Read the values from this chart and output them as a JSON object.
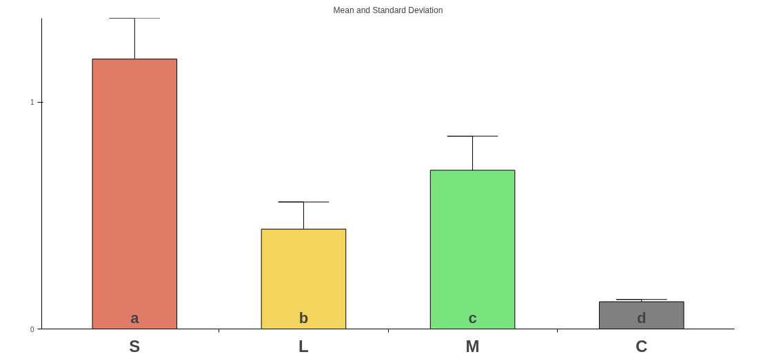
{
  "chart_data": {
    "type": "bar",
    "title": "Mean and Standard Deviation",
    "categories": [
      "S",
      "L",
      "M",
      "C"
    ],
    "values": [
      1.19,
      0.44,
      0.7,
      0.12
    ],
    "colors": [
      "#e07b67",
      "#f5d45e",
      "#7ae57e",
      "#808080"
    ],
    "errors": [
      [
        1.19,
        1.37
      ],
      [
        0.44,
        0.56
      ],
      [
        0.7,
        0.85
      ],
      [
        0.12,
        0.13
      ]
    ],
    "ylim": [
      0,
      1.37
    ],
    "yticks": [
      0,
      1
    ],
    "grid": false,
    "annotations": [
      "a",
      "b",
      "c",
      "d"
    ]
  }
}
